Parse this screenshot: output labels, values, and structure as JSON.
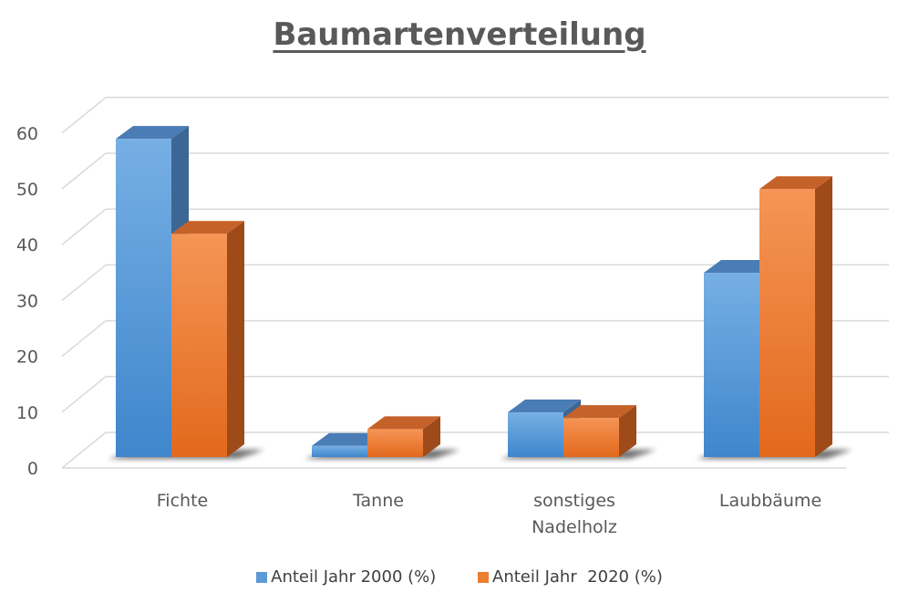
{
  "chart_data": {
    "type": "bar",
    "title": "Baumartenverteilung",
    "categories": [
      [
        "Fichte"
      ],
      [
        "Tanne"
      ],
      [
        "sonstiges",
        "Nadelholz"
      ],
      [
        "Laubbäume"
      ]
    ],
    "series": [
      {
        "name": "Anteil Jahr 2000 (%)",
        "values": [
          57,
          2,
          8,
          33
        ],
        "color": "#5B9BD5"
      },
      {
        "name": "Anteil Jahr  2020 (%)",
        "values": [
          40,
          5,
          7,
          48
        ],
        "color": "#ED7D31"
      }
    ],
    "y_ticks": [
      "0",
      "10",
      "20",
      "30",
      "40",
      "50",
      "60"
    ],
    "ylim": [
      0,
      60
    ],
    "grid": true,
    "legend_position": "bottom",
    "style": "3d-clustered-column"
  }
}
